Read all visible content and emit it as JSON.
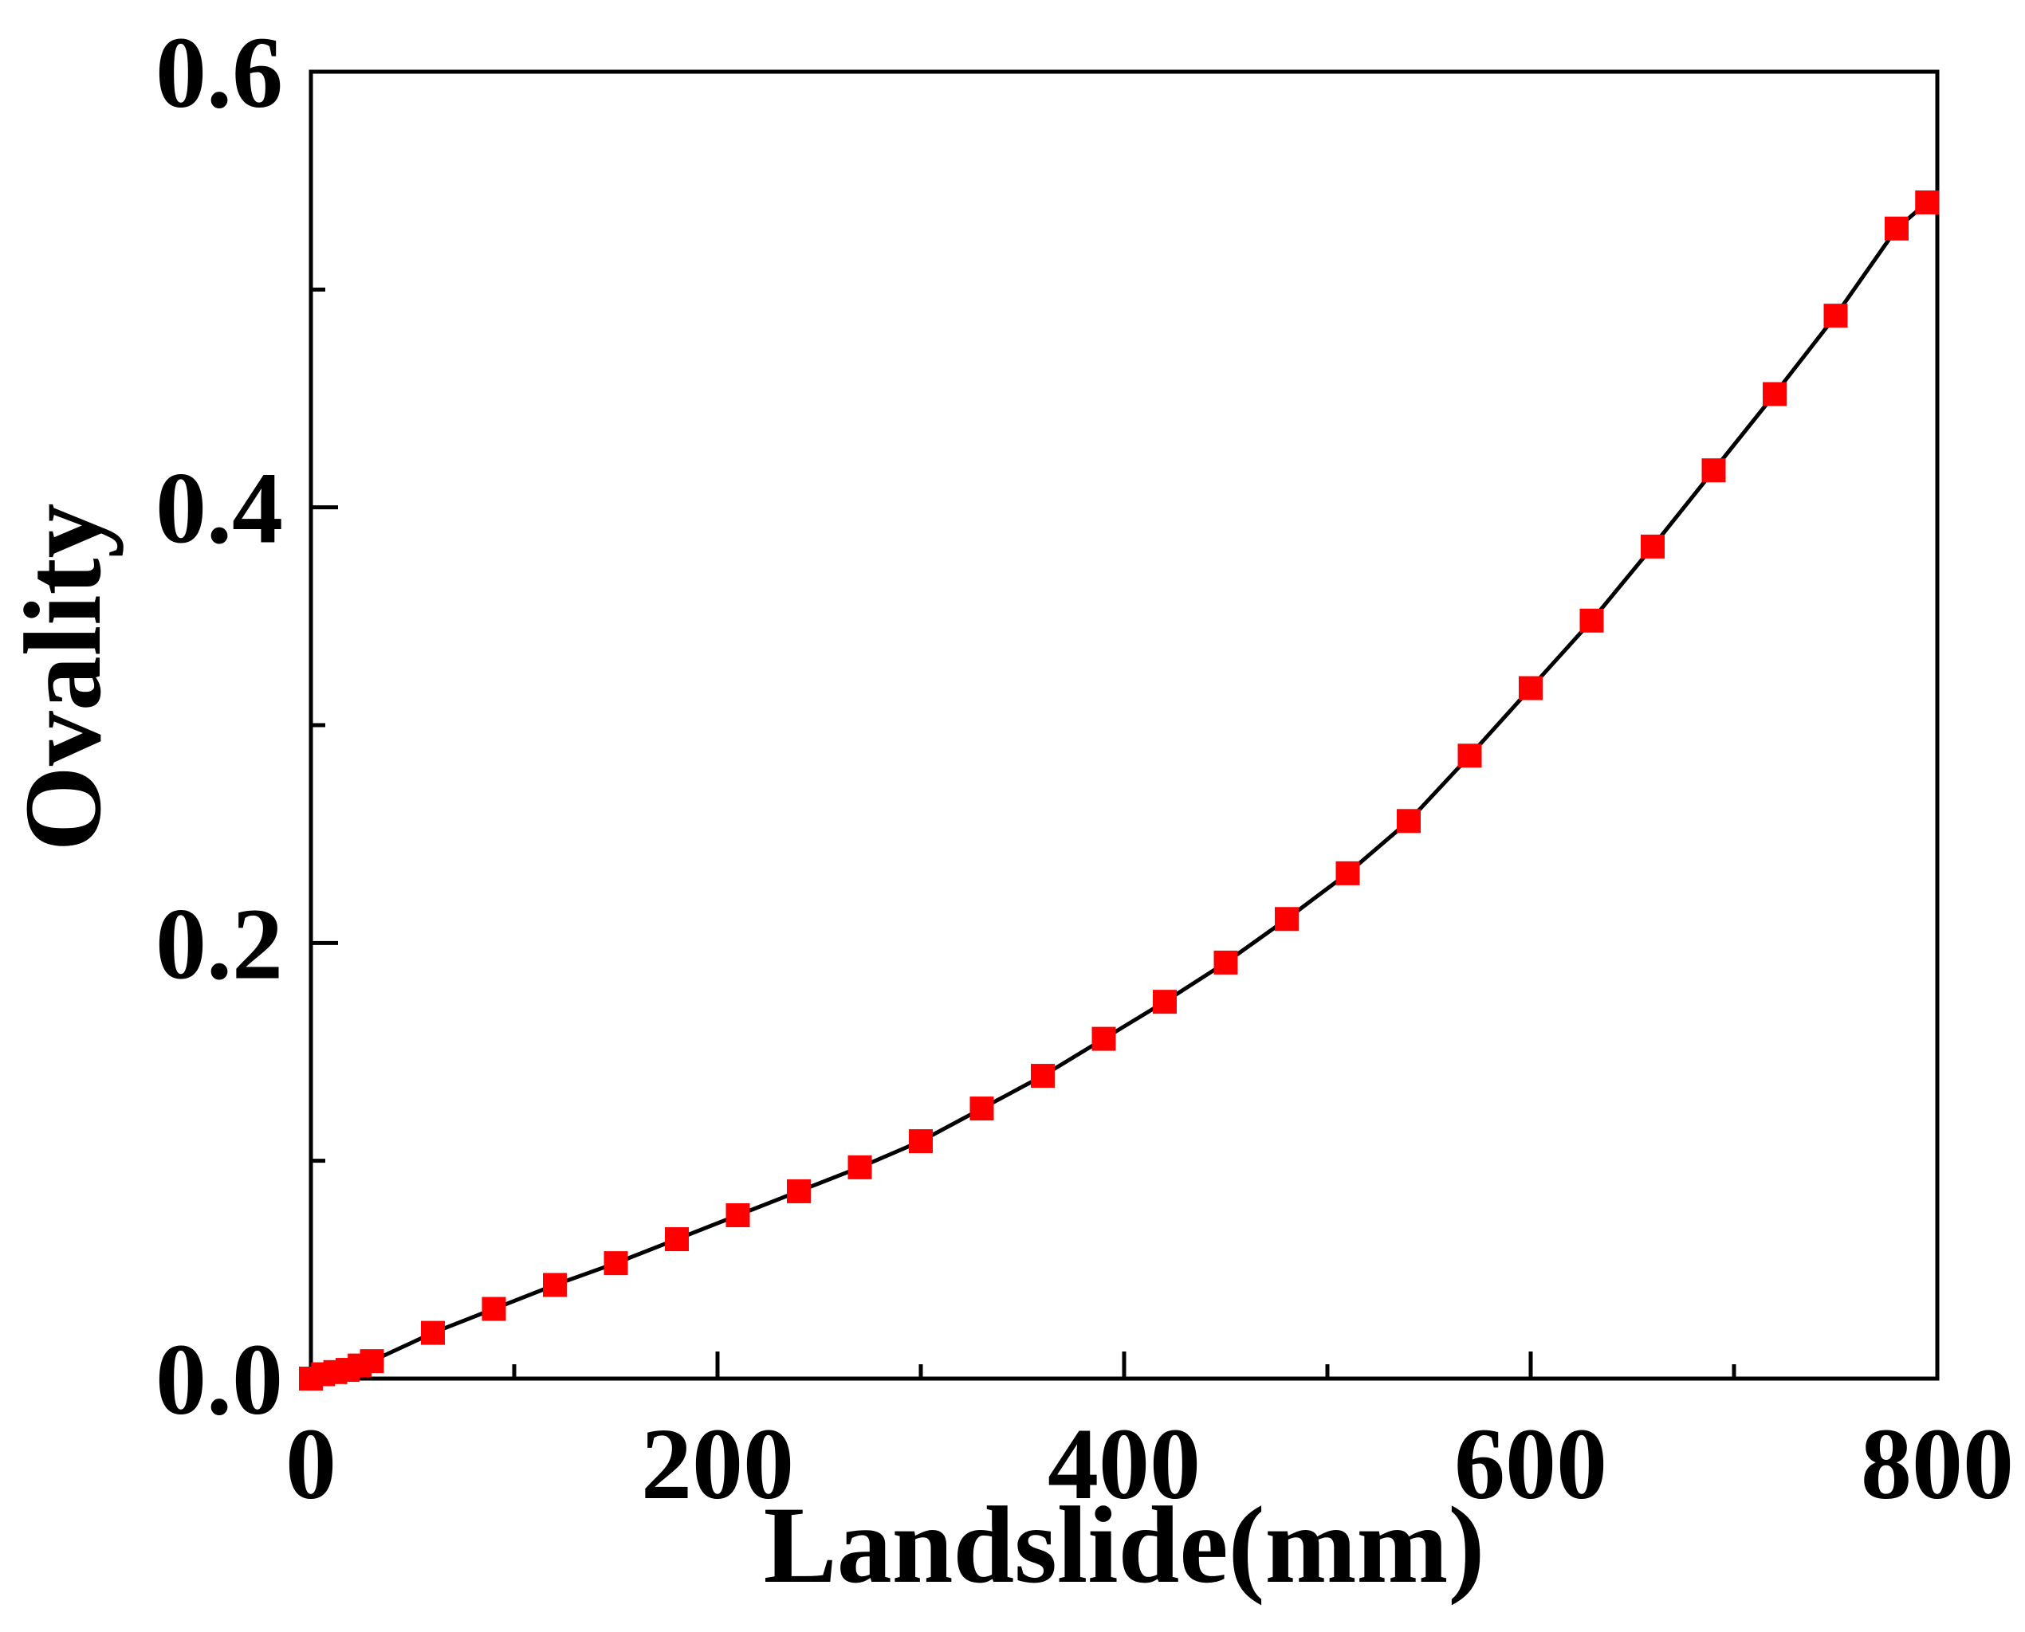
{
  "chart_data": {
    "type": "line",
    "title": "",
    "xlabel": "Landslide(mm)",
    "ylabel": "Ovality",
    "xlim": [
      0,
      800
    ],
    "ylim": [
      0,
      0.6
    ],
    "x_ticks": [
      0,
      200,
      400,
      600,
      800
    ],
    "x_tick_labels": [
      "0",
      "200",
      "400",
      "600",
      "800"
    ],
    "x_minor_ticks": [
      100,
      300,
      500,
      700
    ],
    "y_ticks": [
      0,
      0.2,
      0.4,
      0.6
    ],
    "y_tick_labels": [
      "0.0",
      "0.2",
      "0.4",
      "0.6"
    ],
    "y_minor_ticks": [
      0.1,
      0.3,
      0.5
    ],
    "grid": false,
    "legend": "none",
    "colors": {
      "line": "#000000",
      "marker": "#ff0000"
    },
    "marker": "square",
    "series": [
      {
        "x": [
          0,
          6,
          12,
          18,
          24,
          30,
          60,
          90,
          120,
          150,
          180,
          210,
          240,
          270,
          300,
          330,
          360,
          390,
          420,
          450,
          480,
          510,
          540,
          570,
          600,
          630,
          660,
          690,
          720,
          750,
          780,
          795
        ],
        "y": [
          0.0,
          0.002,
          0.003,
          0.004,
          0.006,
          0.008,
          0.021,
          0.032,
          0.043,
          0.053,
          0.064,
          0.075,
          0.086,
          0.097,
          0.109,
          0.124,
          0.139,
          0.156,
          0.173,
          0.191,
          0.211,
          0.232,
          0.256,
          0.286,
          0.317,
          0.348,
          0.382,
          0.417,
          0.452,
          0.488,
          0.528,
          0.54
        ]
      }
    ]
  }
}
